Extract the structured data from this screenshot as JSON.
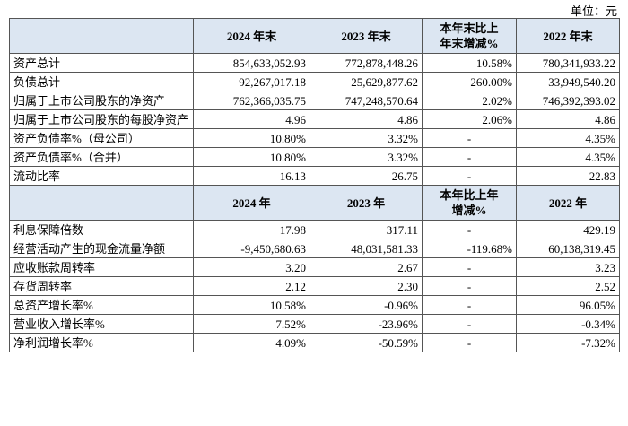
{
  "unit": "单位：元",
  "table": {
    "header1": [
      "2024 年末",
      "2023 年末",
      "本年末比上年末增减%",
      "2022 年末"
    ],
    "rows1": [
      [
        "资产总计",
        "854,633,052.93",
        "772,878,448.26",
        "10.58%",
        "780,341,933.22"
      ],
      [
        "负债总计",
        "92,267,017.18",
        "25,629,877.62",
        "260.00%",
        "33,949,540.20"
      ],
      [
        "归属于上市公司股东的净资产",
        "762,366,035.75",
        "747,248,570.64",
        "2.02%",
        "746,392,393.02"
      ],
      [
        "归属于上市公司股东的每股净资产",
        "4.96",
        "4.86",
        "2.06%",
        "4.86"
      ],
      [
        "资产负债率%（母公司）",
        "10.80%",
        "3.32%",
        "-",
        "4.35%"
      ],
      [
        "资产负债率%（合并）",
        "10.80%",
        "3.32%",
        "-",
        "4.35%"
      ],
      [
        "流动比率",
        "16.13",
        "26.75",
        "-",
        "22.83"
      ]
    ],
    "header2": [
      "2024 年",
      "2023 年",
      "本年比上年增减%",
      "2022 年"
    ],
    "rows2": [
      [
        "利息保障倍数",
        "17.98",
        "317.11",
        "-",
        "429.19"
      ],
      [
        "经营活动产生的现金流量净额",
        "-9,450,680.63",
        "48,031,581.33",
        "-119.68%",
        "60,138,319.45"
      ],
      [
        "应收账款周转率",
        "3.20",
        "2.67",
        "-",
        "3.23"
      ],
      [
        "存货周转率",
        "2.12",
        "2.30",
        "-",
        "2.52"
      ],
      [
        "总资产增长率%",
        "10.58%",
        "-0.96%",
        "-",
        "96.05%"
      ],
      [
        "营业收入增长率%",
        "7.52%",
        "-23.96%",
        "-",
        "-0.34%"
      ],
      [
        "净利润增长率%",
        "4.09%",
        "-50.59%",
        "-",
        "-7.32%"
      ]
    ]
  }
}
